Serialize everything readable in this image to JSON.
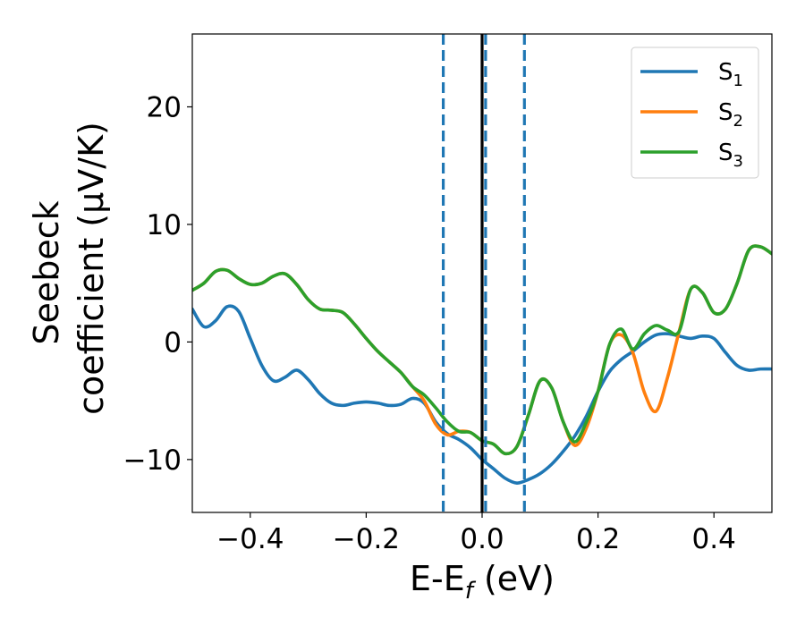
{
  "chart_data": {
    "type": "line",
    "xlabel": "E-E",
    "xlabel_sub": "f",
    "xlabel_unit": " (eV)",
    "ylabel_line1": "Seebeck",
    "ylabel_line2": "coefficient  (μV/K)",
    "xlim": [
      -0.5,
      0.5
    ],
    "ylim": [
      -14.5,
      26.2
    ],
    "xticks": [
      -0.4,
      -0.2,
      0.0,
      0.2,
      0.4
    ],
    "xtick_labels": [
      "−0.4",
      "−0.2",
      "0.0",
      "0.2",
      "0.4"
    ],
    "yticks": [
      -10,
      0,
      10,
      20
    ],
    "ytick_labels": [
      "−10",
      "0",
      "10",
      "20"
    ],
    "legend_position": "upper-right",
    "series": [
      {
        "name": "S",
        "sub": "1",
        "color": "#1f77b4",
        "points": [
          [
            -0.5,
            2.8
          ],
          [
            -0.48,
            1.3
          ],
          [
            -0.46,
            1.8
          ],
          [
            -0.44,
            3.0
          ],
          [
            -0.42,
            2.6
          ],
          [
            -0.4,
            0.3
          ],
          [
            -0.38,
            -2.0
          ],
          [
            -0.36,
            -3.3
          ],
          [
            -0.34,
            -3.0
          ],
          [
            -0.32,
            -2.4
          ],
          [
            -0.3,
            -3.2
          ],
          [
            -0.28,
            -4.4
          ],
          [
            -0.26,
            -5.2
          ],
          [
            -0.24,
            -5.4
          ],
          [
            -0.22,
            -5.2
          ],
          [
            -0.2,
            -5.1
          ],
          [
            -0.18,
            -5.2
          ],
          [
            -0.16,
            -5.4
          ],
          [
            -0.14,
            -5.3
          ],
          [
            -0.12,
            -4.8
          ],
          [
            -0.1,
            -5.2
          ],
          [
            -0.08,
            -6.8
          ],
          [
            -0.06,
            -7.8
          ],
          [
            -0.04,
            -8.3
          ],
          [
            -0.02,
            -9.0
          ],
          [
            0.0,
            -10.0
          ],
          [
            0.02,
            -10.8
          ],
          [
            0.04,
            -11.6
          ],
          [
            0.06,
            -12.0
          ],
          [
            0.08,
            -11.7
          ],
          [
            0.1,
            -11.2
          ],
          [
            0.12,
            -10.4
          ],
          [
            0.14,
            -9.3
          ],
          [
            0.16,
            -8.0
          ],
          [
            0.18,
            -6.3
          ],
          [
            0.2,
            -4.2
          ],
          [
            0.22,
            -2.5
          ],
          [
            0.24,
            -1.5
          ],
          [
            0.26,
            -0.8
          ],
          [
            0.28,
            0.0
          ],
          [
            0.3,
            0.6
          ],
          [
            0.32,
            0.7
          ],
          [
            0.34,
            0.5
          ],
          [
            0.36,
            0.3
          ],
          [
            0.38,
            0.5
          ],
          [
            0.4,
            0.3
          ],
          [
            0.42,
            -0.9
          ],
          [
            0.44,
            -2.0
          ],
          [
            0.46,
            -2.4
          ],
          [
            0.48,
            -2.3
          ],
          [
            0.5,
            -2.3
          ]
        ]
      },
      {
        "name": "S",
        "sub": "2",
        "color": "#ff7f0e",
        "points": [
          [
            -0.5,
            4.4
          ],
          [
            -0.48,
            5.0
          ],
          [
            -0.46,
            6.0
          ],
          [
            -0.44,
            6.1
          ],
          [
            -0.42,
            5.4
          ],
          [
            -0.4,
            4.9
          ],
          [
            -0.38,
            5.0
          ],
          [
            -0.36,
            5.6
          ],
          [
            -0.34,
            5.8
          ],
          [
            -0.32,
            4.9
          ],
          [
            -0.3,
            3.6
          ],
          [
            -0.28,
            2.8
          ],
          [
            -0.26,
            2.7
          ],
          [
            -0.24,
            2.5
          ],
          [
            -0.22,
            1.5
          ],
          [
            -0.2,
            0.3
          ],
          [
            -0.18,
            -0.8
          ],
          [
            -0.16,
            -1.7
          ],
          [
            -0.14,
            -2.6
          ],
          [
            -0.12,
            -3.8
          ],
          [
            -0.1,
            -5.0
          ],
          [
            -0.08,
            -7.0
          ],
          [
            -0.06,
            -7.9
          ],
          [
            -0.04,
            -7.6
          ],
          [
            -0.02,
            -7.7
          ],
          [
            0.0,
            -8.4
          ],
          [
            0.02,
            -8.7
          ],
          [
            0.04,
            -9.5
          ],
          [
            0.06,
            -8.9
          ],
          [
            0.08,
            -6.2
          ],
          [
            0.1,
            -3.3
          ],
          [
            0.12,
            -3.9
          ],
          [
            0.14,
            -6.8
          ],
          [
            0.16,
            -8.8
          ],
          [
            0.18,
            -7.3
          ],
          [
            0.2,
            -4.2
          ],
          [
            0.22,
            -0.2
          ],
          [
            0.24,
            0.6
          ],
          [
            0.26,
            -0.9
          ],
          [
            0.28,
            -4.3
          ],
          [
            0.3,
            -5.9
          ],
          [
            0.32,
            -3.0
          ],
          [
            0.34,
            0.9
          ],
          [
            0.36,
            4.5
          ],
          [
            0.38,
            4.2
          ],
          [
            0.4,
            2.5
          ],
          [
            0.42,
            2.8
          ],
          [
            0.44,
            5.0
          ],
          [
            0.46,
            7.8
          ],
          [
            0.48,
            8.1
          ],
          [
            0.5,
            7.5
          ]
        ]
      },
      {
        "name": "S",
        "sub": "3",
        "color": "#2ca02c",
        "points": [
          [
            -0.5,
            4.4
          ],
          [
            -0.48,
            5.0
          ],
          [
            -0.46,
            6.0
          ],
          [
            -0.44,
            6.1
          ],
          [
            -0.42,
            5.4
          ],
          [
            -0.4,
            4.9
          ],
          [
            -0.38,
            5.0
          ],
          [
            -0.36,
            5.6
          ],
          [
            -0.34,
            5.8
          ],
          [
            -0.32,
            4.9
          ],
          [
            -0.3,
            3.6
          ],
          [
            -0.28,
            2.8
          ],
          [
            -0.26,
            2.7
          ],
          [
            -0.24,
            2.5
          ],
          [
            -0.22,
            1.5
          ],
          [
            -0.2,
            0.3
          ],
          [
            -0.18,
            -0.8
          ],
          [
            -0.16,
            -1.7
          ],
          [
            -0.14,
            -2.6
          ],
          [
            -0.12,
            -3.8
          ],
          [
            -0.1,
            -4.5
          ],
          [
            -0.08,
            -5.6
          ],
          [
            -0.06,
            -6.8
          ],
          [
            -0.04,
            -7.6
          ],
          [
            -0.02,
            -7.7
          ],
          [
            0.0,
            -8.4
          ],
          [
            0.02,
            -8.7
          ],
          [
            0.04,
            -9.5
          ],
          [
            0.06,
            -8.9
          ],
          [
            0.08,
            -6.2
          ],
          [
            0.1,
            -3.3
          ],
          [
            0.12,
            -3.9
          ],
          [
            0.14,
            -6.8
          ],
          [
            0.16,
            -8.5
          ],
          [
            0.18,
            -6.8
          ],
          [
            0.2,
            -4.2
          ],
          [
            0.22,
            -0.2
          ],
          [
            0.24,
            1.1
          ],
          [
            0.26,
            -0.6
          ],
          [
            0.28,
            0.7
          ],
          [
            0.3,
            1.4
          ],
          [
            0.32,
            1.0
          ],
          [
            0.34,
            0.9
          ],
          [
            0.36,
            4.5
          ],
          [
            0.38,
            4.2
          ],
          [
            0.4,
            2.5
          ],
          [
            0.42,
            2.8
          ],
          [
            0.44,
            5.0
          ],
          [
            0.46,
            7.8
          ],
          [
            0.48,
            8.1
          ],
          [
            0.5,
            7.5
          ]
        ]
      }
    ],
    "vlines": [
      {
        "x": -0.067,
        "style": "dashed",
        "color": "#1f77b4"
      },
      {
        "x": 0.006,
        "style": "dashed",
        "color": "#1f77b4"
      },
      {
        "x": 0.073,
        "style": "dashed",
        "color": "#1f77b4"
      },
      {
        "x": 0.0,
        "style": "solid",
        "color": "#000000"
      }
    ]
  }
}
